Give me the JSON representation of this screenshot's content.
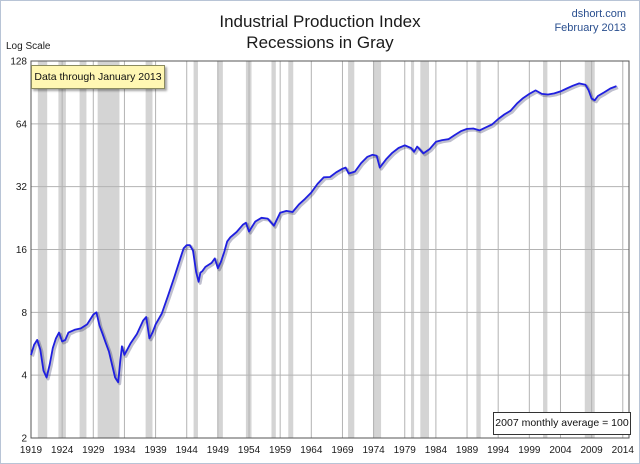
{
  "header": {
    "title_line1": "Industrial Production Index",
    "title_line2": "Recessions in Gray",
    "source": "dshort.com",
    "date": "February 2013"
  },
  "annotations": {
    "data_through": "Data through January 2013",
    "base_note": "2007 monthly average = 100"
  },
  "chart_data": {
    "type": "line",
    "title": "Industrial Production Index",
    "subtitle": "Recessions in Gray",
    "ylabel": "Log Scale",
    "yscale": "log2",
    "ylim": [
      2,
      128
    ],
    "yticks": [
      2,
      4,
      8,
      16,
      32,
      64,
      128
    ],
    "xlim": [
      1919,
      2015
    ],
    "xticks": [
      1919,
      1924,
      1929,
      1934,
      1939,
      1944,
      1949,
      1954,
      1959,
      1964,
      1969,
      1974,
      1979,
      1984,
      1989,
      1994,
      1999,
      2004,
      2009,
      2014
    ],
    "grid": true,
    "line_color": "#1f1fe0",
    "recession_color": "#d4d4d4",
    "recessions": [
      [
        1920.1,
        1921.6
      ],
      [
        1923.4,
        1924.6
      ],
      [
        1926.8,
        1927.9
      ],
      [
        1929.7,
        1933.2
      ],
      [
        1937.4,
        1938.5
      ],
      [
        1945.1,
        1945.8
      ],
      [
        1948.9,
        1949.8
      ],
      [
        1953.5,
        1954.4
      ],
      [
        1957.6,
        1958.3
      ],
      [
        1960.3,
        1961.1
      ],
      [
        1969.9,
        1970.9
      ],
      [
        1973.9,
        1975.2
      ],
      [
        1980.0,
        1980.5
      ],
      [
        1981.5,
        1982.9
      ],
      [
        1990.5,
        1991.2
      ],
      [
        2001.2,
        2001.9
      ],
      [
        2007.9,
        2009.5
      ]
    ],
    "series": [
      {
        "x": [
          1919.0,
          1919.5,
          1920.0,
          1920.5,
          1921.0,
          1921.5,
          1922.0,
          1922.5,
          1923.0,
          1923.5,
          1924.0,
          1924.5,
          1925.0,
          1926.0,
          1927.0,
          1928.0,
          1929.0,
          1929.5,
          1930.0,
          1930.5,
          1931.0,
          1931.5,
          1932.0,
          1932.5,
          1933.0,
          1933.3,
          1933.6,
          1934.0,
          1935.0,
          1936.0,
          1937.0,
          1937.5,
          1938.0,
          1938.5,
          1939.0,
          1940.0,
          1941.0,
          1942.0,
          1943.0,
          1943.5,
          1944.0,
          1944.5,
          1945.0,
          1945.5,
          1945.9,
          1946.2,
          1946.5,
          1947.0,
          1948.0,
          1948.5,
          1949.0,
          1949.5,
          1950.0,
          1950.5,
          1951.0,
          1952.0,
          1953.0,
          1953.5,
          1954.0,
          1955.0,
          1956.0,
          1957.0,
          1958.0,
          1959.0,
          1960.0,
          1961.0,
          1962.0,
          1963.0,
          1964.0,
          1965.0,
          1966.0,
          1967.0,
          1968.0,
          1969.0,
          1969.5,
          1970.0,
          1971.0,
          1972.0,
          1973.0,
          1973.8,
          1974.5,
          1975.0,
          1976.0,
          1977.0,
          1978.0,
          1979.0,
          1980.0,
          1980.5,
          1981.0,
          1982.0,
          1983.0,
          1984.0,
          1985.0,
          1986.0,
          1987.0,
          1988.0,
          1989.0,
          1990.0,
          1991.0,
          1992.0,
          1993.0,
          1994.0,
          1995.0,
          1996.0,
          1997.0,
          1998.0,
          1999.0,
          2000.0,
          2001.0,
          2002.0,
          2003.0,
          2004.0,
          2005.0,
          2006.0,
          2007.0,
          2008.0,
          2008.5,
          2009.0,
          2009.5,
          2010.0,
          2011.0,
          2012.0,
          2013.0
        ],
        "y": [
          5.0,
          5.6,
          5.9,
          5.3,
          4.2,
          3.9,
          4.5,
          5.4,
          6.0,
          6.4,
          5.8,
          5.9,
          6.4,
          6.6,
          6.7,
          7.0,
          7.8,
          8.0,
          6.9,
          6.3,
          5.7,
          5.2,
          4.5,
          3.9,
          3.7,
          4.6,
          5.5,
          5.0,
          5.7,
          6.3,
          7.3,
          7.6,
          6.0,
          6.4,
          7.0,
          7.9,
          9.6,
          11.8,
          14.6,
          16.2,
          16.8,
          16.8,
          15.8,
          12.5,
          11.2,
          12.4,
          12.6,
          13.2,
          13.8,
          14.5,
          13.0,
          14.0,
          15.5,
          17.5,
          18.3,
          19.4,
          21.0,
          21.5,
          19.5,
          21.8,
          22.7,
          22.5,
          20.8,
          24.0,
          24.5,
          24.2,
          26.3,
          28.0,
          30.0,
          33.0,
          35.5,
          35.6,
          37.5,
          39.0,
          39.5,
          37.0,
          37.8,
          41.5,
          44.5,
          45.5,
          45.0,
          39.5,
          43.3,
          46.5,
          49.0,
          50.5,
          49.0,
          47.0,
          49.8,
          46.2,
          48.5,
          52.5,
          53.5,
          54.0,
          56.5,
          59.0,
          60.5,
          60.8,
          59.5,
          61.5,
          63.5,
          67.5,
          71.0,
          74.0,
          80.0,
          85.0,
          89.0,
          92.5,
          89.0,
          88.5,
          89.5,
          91.5,
          94.5,
          97.5,
          100.0,
          98.5,
          93.0,
          84.5,
          83.0,
          87.0,
          90.5,
          94.5,
          97.0
        ]
      }
    ]
  }
}
